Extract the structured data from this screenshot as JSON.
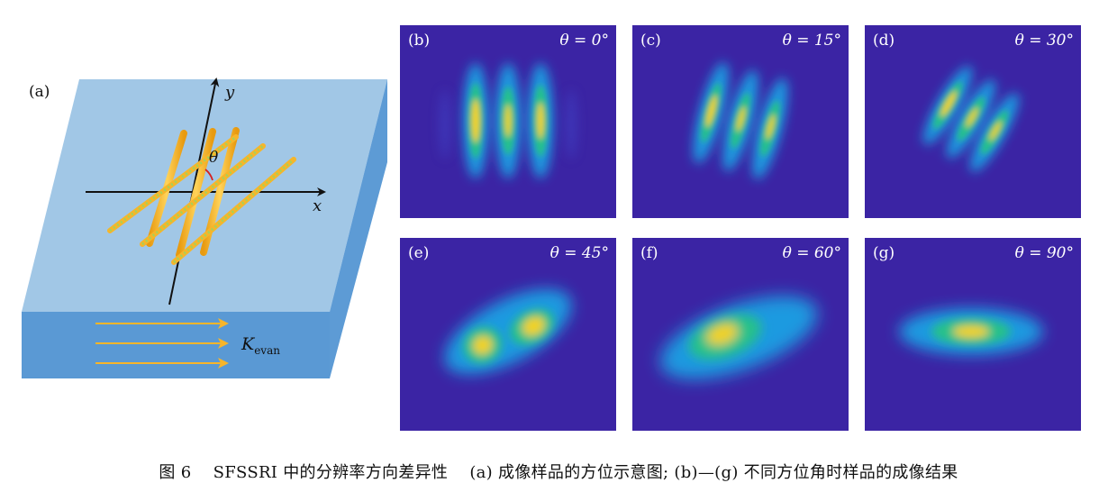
{
  "figure": {
    "panel_a": {
      "label": "(a)",
      "axis_x": "x",
      "axis_y": "y",
      "angle_symbol": "θ",
      "wave_vector_label": "K",
      "wave_vector_subscript": "evan"
    },
    "panels": [
      {
        "label": "(b)",
        "angle": "θ = 0°"
      },
      {
        "label": "(c)",
        "angle": "θ = 15°"
      },
      {
        "label": "(d)",
        "angle": "θ = 30°"
      },
      {
        "label": "(e)",
        "angle": "θ = 45°"
      },
      {
        "label": "(f)",
        "angle": "θ = 60°"
      },
      {
        "label": "(g)",
        "angle": "θ = 90°"
      }
    ]
  },
  "caption": {
    "number": "图 6",
    "title": "SFSSRI 中的分辨率方向差异性",
    "description": "(a) 成像样品的方位示意图; (b)—(g) 不同方位角时样品的成像结果"
  },
  "colors": {
    "background_colormap": "#3b24a4",
    "colormap_peak": "#f9fb0e",
    "substrate_top": "#a1c7e6",
    "substrate_side": "#5d9bd5",
    "rods": "#f7b52a",
    "rods_dotted": "#a8d158"
  }
}
